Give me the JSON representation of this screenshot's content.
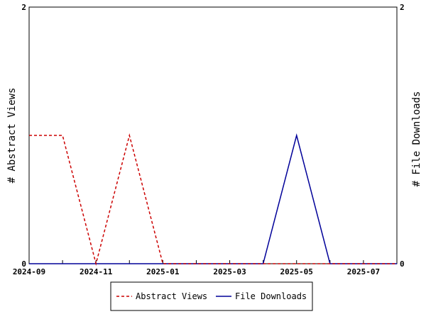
{
  "chart_data": {
    "type": "line",
    "x": [
      "2024-09",
      "2024-10",
      "2024-11",
      "2024-12",
      "2025-01",
      "2025-02",
      "2025-03",
      "2025-04",
      "2025-05",
      "2025-06",
      "2025-07",
      "2025-08"
    ],
    "x_tick_labels": [
      "2024-09",
      "2024-11",
      "2025-01",
      "2025-03",
      "2025-05",
      "2025-07"
    ],
    "series": [
      {
        "name": "Abstract Views",
        "axis": "left",
        "color": "#cc0000",
        "dash": true,
        "values": [
          1,
          1,
          0,
          1,
          0,
          0,
          0,
          0,
          0,
          0,
          0,
          0
        ]
      },
      {
        "name": "File Downloads",
        "axis": "right",
        "color": "#000099",
        "dash": false,
        "values": [
          0,
          0,
          0,
          0,
          0,
          0,
          0,
          0,
          1,
          0,
          0,
          0
        ]
      }
    ],
    "ylabel_left": "# Abstract Views",
    "ylabel_right": "# File Downloads",
    "ylim_left": [
      0,
      2
    ],
    "ylim_right": [
      0,
      2
    ],
    "y_ticks_left": [
      0,
      2
    ],
    "y_ticks_right": [
      0,
      2
    ],
    "legend_position": "bottom-center",
    "grid": false
  }
}
